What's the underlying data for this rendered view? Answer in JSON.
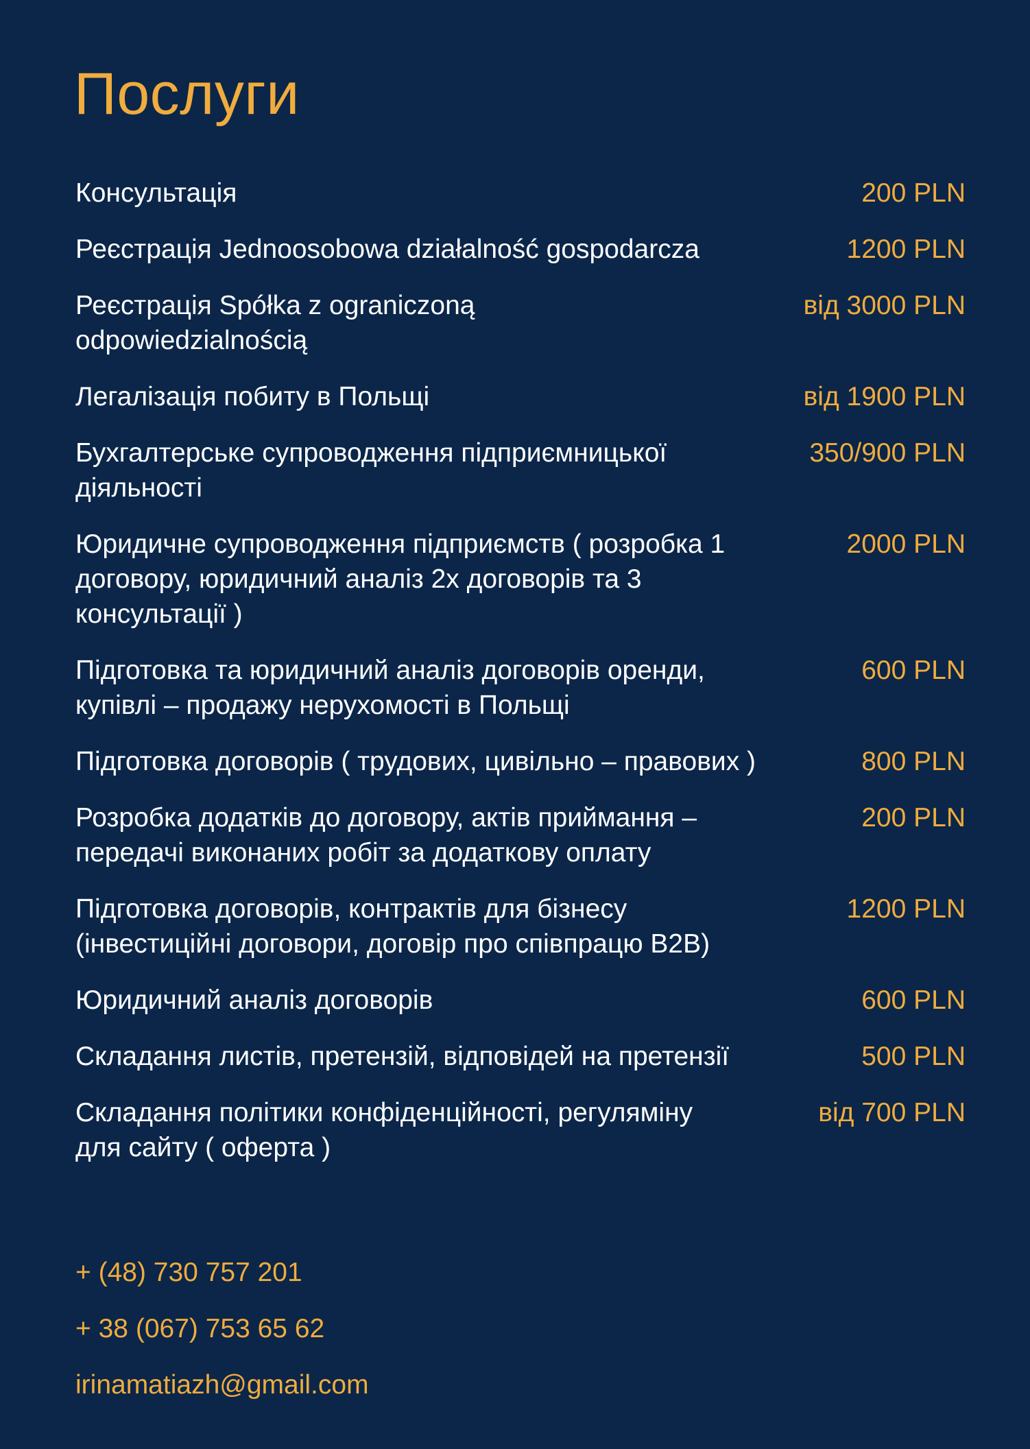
{
  "title": "Послуги",
  "colors": {
    "background": "#0b2649",
    "accent": "#f0ac3e",
    "text": "#ffffff"
  },
  "services": [
    {
      "lines": [
        "Консультація"
      ],
      "price": "200 PLN"
    },
    {
      "lines": [
        "Реєстрація Jednoosobowa działalność gospodarcza"
      ],
      "price": "1200 PLN"
    },
    {
      "lines": [
        "Реєстрація Spółka z ograniczoną",
        "odpowiedzialnością"
      ],
      "price": "від 3000 PLN"
    },
    {
      "lines": [
        "Легалізація побиту в Польщі"
      ],
      "price": "від 1900 PLN"
    },
    {
      "lines": [
        "Бухгалтерське супроводження підприємницької",
        "діяльності"
      ],
      "price": "350/900 PLN"
    },
    {
      "lines": [
        "Юридичне супроводження підприємств ( розробка 1",
        "договору, юридичний аналіз 2х договорів та 3",
        "консультації )"
      ],
      "price": "2000 PLN"
    },
    {
      "lines": [
        "Підготовка та юридичний аналіз договорів оренди,",
        "купівлі – продажу нерухомості в Польщі"
      ],
      "price": "600 PLN"
    },
    {
      "lines": [
        "Підготовка договорів ( трудових, цивільно – правових )"
      ],
      "price": "800 PLN"
    },
    {
      "lines": [
        "Розробка додатків до договору, актів приймання –",
        "передачі виконаних робіт за додаткову оплату"
      ],
      "price": "200 PLN"
    },
    {
      "lines": [
        "Підготовка договорів, контрактів для бізнесу",
        "(інвестиційні договори, договір про співпрацю B2B)"
      ],
      "price": "1200 PLN"
    },
    {
      "lines": [
        "Юридичний аналіз договорів"
      ],
      "price": "600 PLN"
    },
    {
      "lines": [
        "Складання листів, претензій, відповідей на претензії"
      ],
      "price": "500 PLN"
    },
    {
      "lines": [
        "Складання політики конфіденційності, регуляміну",
        "для сайту ( оферта )"
      ],
      "price": "від 700 PLN"
    }
  ],
  "contacts": {
    "phone_pl": "+ (48) 730 757 201",
    "phone_ua": "+ 38 (067) 753 65 62",
    "email": "irinamatiazh@gmail.com"
  }
}
